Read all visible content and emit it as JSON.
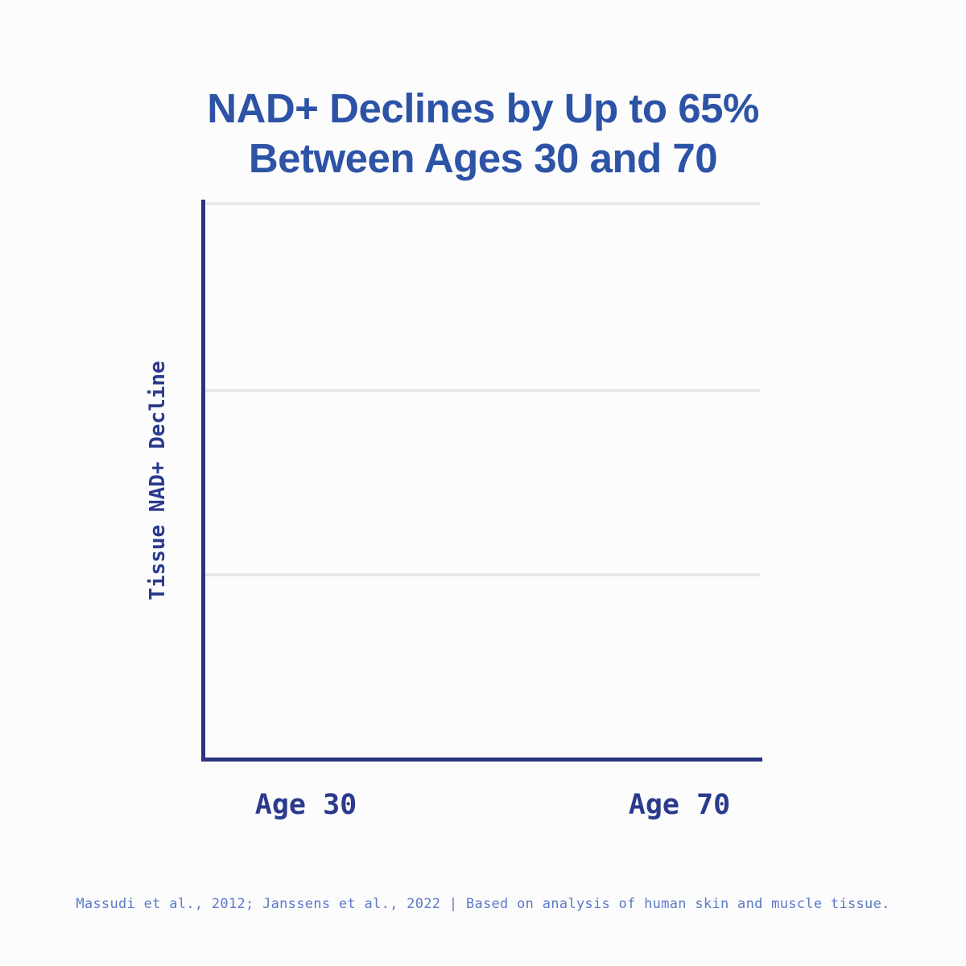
{
  "title": {
    "line1": "NAD+ Declines by Up to 65%",
    "line2": "Between Ages 30 and 70"
  },
  "chart_data": {
    "type": "line",
    "title": "NAD+ Declines by Up to 65% Between Ages 30 and 70",
    "xlabel": "",
    "ylabel": "Tissue NAD+ Decline",
    "categories": [
      "Age 30",
      "Age 70"
    ],
    "series": [],
    "y_tick_labels": [],
    "grid": true,
    "gridlines_horizontal": 3,
    "legend": "none",
    "plot_area_empty": true
  },
  "axes": {
    "y_label": "Tissue NAD+ Decline",
    "x_ticks": [
      "Age 30",
      "Age 70"
    ]
  },
  "footer": {
    "citation": "Massudi et al., 2012; Janssens et al., 2022 | Based on analysis of human skin and muscle tissue."
  },
  "colors": {
    "background": "#fcfcfc",
    "title-blue": "#2d53a6",
    "axis-navy": "#2a3480",
    "tick-navy": "#2b3a8c",
    "gridline-gray": "#e8e8e8",
    "footer-blue": "#5c7ac9"
  }
}
